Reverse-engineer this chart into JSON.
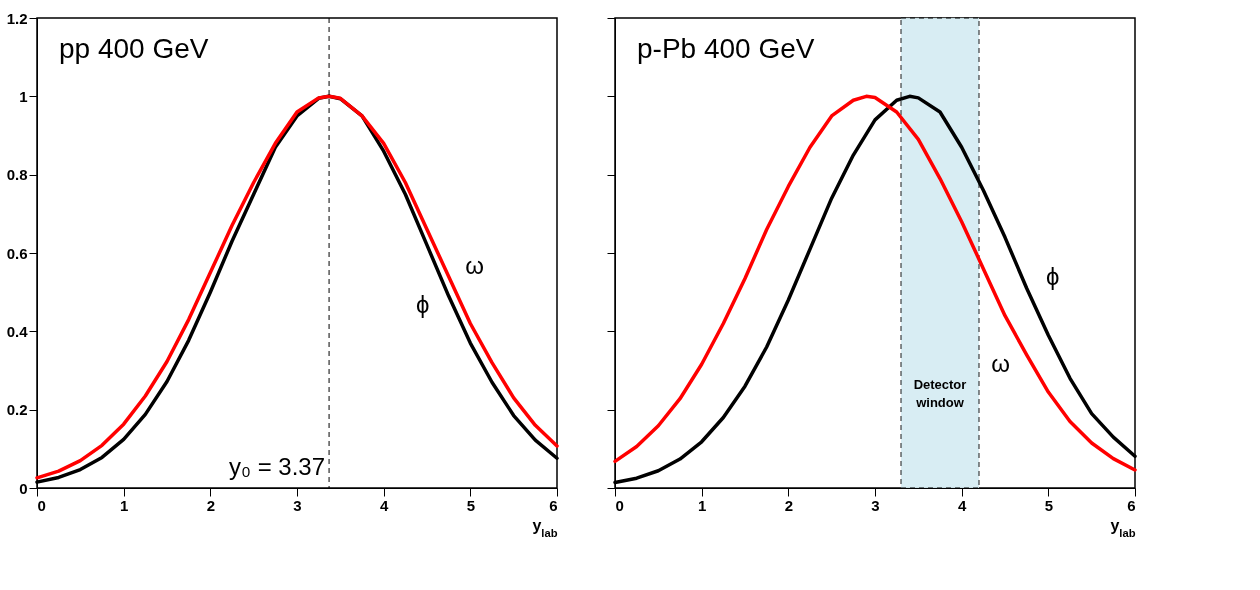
{
  "chart_data": [
    {
      "type": "line",
      "title": "pp  400 GeV",
      "xlabel": "y$_{lab}$",
      "x": [
        0,
        0.25,
        0.5,
        0.75,
        1,
        1.25,
        1.5,
        1.75,
        2,
        2.25,
        2.5,
        2.75,
        3,
        3.25,
        3.37,
        3.5,
        3.75,
        4,
        4.25,
        4.5,
        4.75,
        5,
        5.25,
        5.5,
        5.75,
        6
      ],
      "series": [
        {
          "name": "ϕ",
          "color": "#000000",
          "values": [
            0.015,
            0.027,
            0.047,
            0.078,
            0.124,
            0.188,
            0.272,
            0.377,
            0.5,
            0.63,
            0.75,
            0.87,
            0.95,
            0.995,
            1,
            0.994,
            0.95,
            0.86,
            0.75,
            0.62,
            0.49,
            0.37,
            0.27,
            0.185,
            0.122,
            0.076
          ]
        },
        {
          "name": "ω",
          "color": "#ff0000",
          "values": [
            0.026,
            0.043,
            0.07,
            0.109,
            0.163,
            0.235,
            0.323,
            0.43,
            0.55,
            0.67,
            0.78,
            0.88,
            0.96,
            0.996,
            1,
            0.995,
            0.95,
            0.88,
            0.78,
            0.66,
            0.54,
            0.42,
            0.32,
            0.23,
            0.16,
            0.107
          ]
        }
      ],
      "xlim": [
        0,
        6
      ],
      "xticks": [
        0,
        1,
        2,
        3,
        4,
        5,
        6
      ],
      "ylim": [
        0,
        1.2
      ],
      "yticks": [
        0,
        0.2,
        0.4,
        0.6,
        0.8,
        1,
        1.2
      ],
      "ref_lines": [
        {
          "axis": "x",
          "value": 3.37,
          "label": "y₀ = 3.37",
          "color": "#000000",
          "line_style": "dashed"
        }
      ],
      "grid": false,
      "legend": false,
      "marker": "none",
      "line_style": "solid"
    },
    {
      "type": "line",
      "title": "p-Pb  400 GeV",
      "xlabel": "y$_{lab}$",
      "x": [
        0,
        0.25,
        0.5,
        0.75,
        1,
        1.25,
        1.5,
        1.75,
        2,
        2.25,
        2.5,
        2.75,
        3,
        3.25,
        3.4,
        3.5,
        3.75,
        4,
        4.25,
        4.5,
        4.75,
        5,
        5.25,
        5.5,
        5.75,
        6
      ],
      "series": [
        {
          "name": "ϕ",
          "color": "#000000",
          "values": [
            0.014,
            0.025,
            0.044,
            0.074,
            0.118,
            0.18,
            0.26,
            0.36,
            0.48,
            0.61,
            0.74,
            0.85,
            0.94,
            0.99,
            1,
            0.996,
            0.96,
            0.87,
            0.76,
            0.64,
            0.51,
            0.39,
            0.28,
            0.19,
            0.13,
            0.081
          ]
        },
        {
          "name": "ω",
          "color": "#ff0000",
          "x": [
            0,
            0.25,
            0.5,
            0.75,
            1,
            1.25,
            1.5,
            1.75,
            2,
            2.25,
            2.5,
            2.75,
            2.9,
            3,
            3.25,
            3.5,
            3.75,
            4,
            4.25,
            4.5,
            4.75,
            5,
            5.25,
            5.5,
            5.75,
            6
          ],
          "values": [
            0.068,
            0.106,
            0.159,
            0.228,
            0.316,
            0.42,
            0.535,
            0.66,
            0.77,
            0.87,
            0.95,
            0.99,
            1,
            0.997,
            0.96,
            0.89,
            0.79,
            0.68,
            0.56,
            0.44,
            0.34,
            0.245,
            0.17,
            0.115,
            0.075,
            0.046
          ]
        }
      ],
      "xlim": [
        0,
        6
      ],
      "xticks": [
        0,
        1,
        2,
        3,
        4,
        5,
        6
      ],
      "ylim": [
        0,
        1.2
      ],
      "yticks": [
        0,
        0.2,
        0.4,
        0.6,
        0.8,
        1,
        1.2
      ],
      "tick_labels": "x",
      "bands": [
        {
          "axis": "x",
          "from": 3.3,
          "to": 4.2,
          "label": "Detector window",
          "color": "#d4ecf2"
        }
      ],
      "grid": false,
      "legend": false,
      "marker": "none",
      "line_style": "solid"
    }
  ]
}
